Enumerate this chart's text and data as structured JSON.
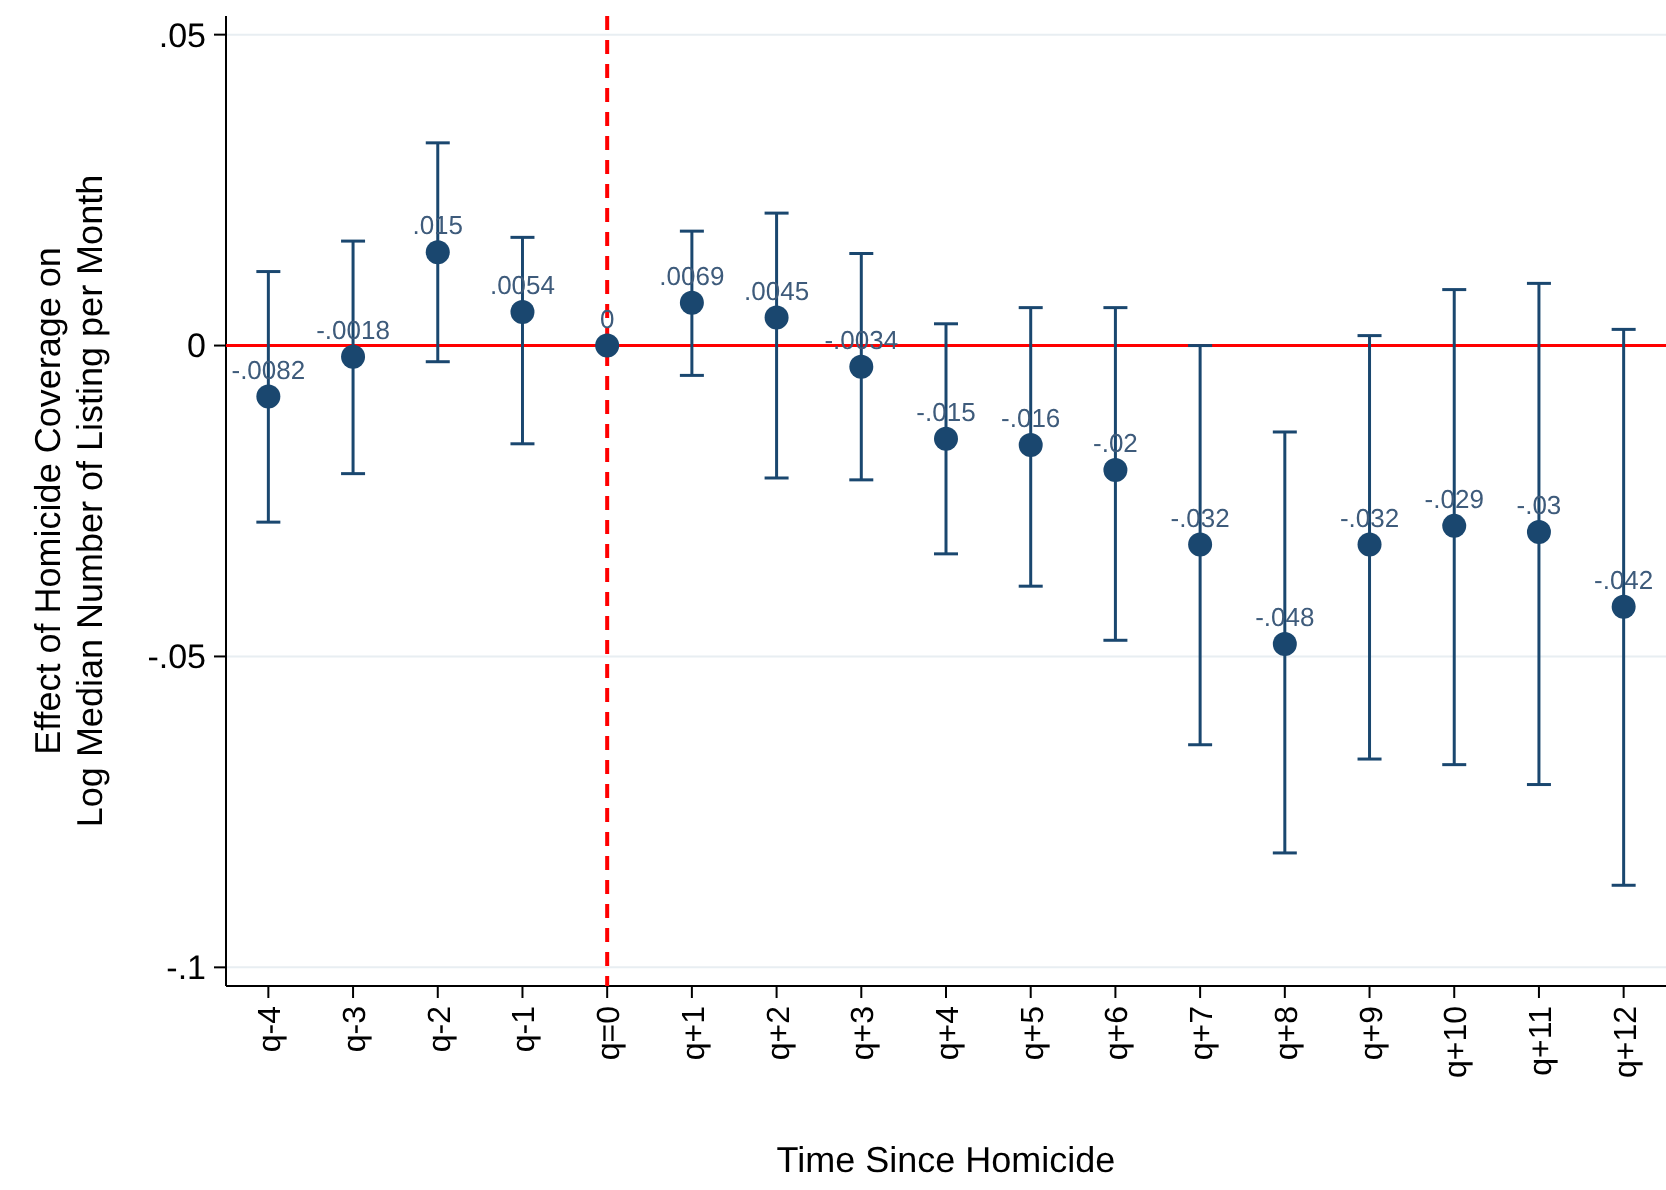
{
  "chart_data": {
    "type": "scatter",
    "xlabel": "Time Since Homicide",
    "ylabel": "Effect of Homicide Coverage on\nLog Median Number of Listing per Month",
    "categories": [
      "q-4",
      "q-3",
      "q-2",
      "q-1",
      "q=0",
      "q+1",
      "q+2",
      "q+3",
      "q+4",
      "q+5",
      "q+6",
      "q+7",
      "q+8",
      "q+9",
      "q+10",
      "q+11",
      "q+12"
    ],
    "series": [
      {
        "color": "#1a476f",
        "values": [
          -0.0082,
          -0.0018,
          0.015,
          0.0054,
          0,
          0.0069,
          0.0045,
          -0.0034,
          -0.015,
          -0.016,
          -0.02,
          -0.032,
          -0.048,
          -0.032,
          -0.029,
          -0.03,
          -0.042
        ],
        "errors": [
          [
            -0.0284,
            0.0119
          ],
          [
            -0.0206,
            0.0168
          ],
          [
            -0.0026,
            0.0326
          ],
          [
            -0.0158,
            0.0174
          ],
          null,
          [
            -0.0048,
            0.0184
          ],
          [
            -0.0213,
            0.0213
          ],
          [
            -0.0216,
            0.0148
          ],
          [
            -0.0335,
            0.0035
          ],
          [
            -0.0387,
            0.0061
          ],
          [
            -0.0474,
            0.0061
          ],
          [
            -0.0642,
            0
          ],
          [
            -0.0816,
            -0.0139
          ],
          [
            -0.0665,
            0.0016
          ],
          [
            -0.0674,
            0.009
          ],
          [
            -0.0706,
            0.01
          ],
          [
            -0.0868,
            0.0026
          ]
        ],
        "value_labels": [
          "-.0082",
          "-.0018",
          ".015",
          ".0054",
          "0",
          ".0069",
          ".0045",
          "-.0034",
          "-.015",
          "-.016",
          "-.02",
          "-.032",
          "-.048",
          "-.032",
          "-.029",
          "-.03",
          "-.042"
        ]
      }
    ],
    "ylim": [
      -0.103,
      0.053
    ],
    "yticks": [
      {
        "value": 0.05,
        "label": ".05"
      },
      0,
      {
        "value": -0.05,
        "label": "-.05"
      },
      {
        "value": -0.1,
        "label": "-.1"
      }
    ],
    "grid": "y",
    "marker": "circle",
    "ref_lines": [
      {
        "axis": "y",
        "value": 0,
        "color": "#ff0000",
        "line_style": "solid"
      },
      {
        "axis": "x",
        "value": "q=0",
        "color": "#ff0000",
        "line_style": "dashed"
      }
    ]
  }
}
